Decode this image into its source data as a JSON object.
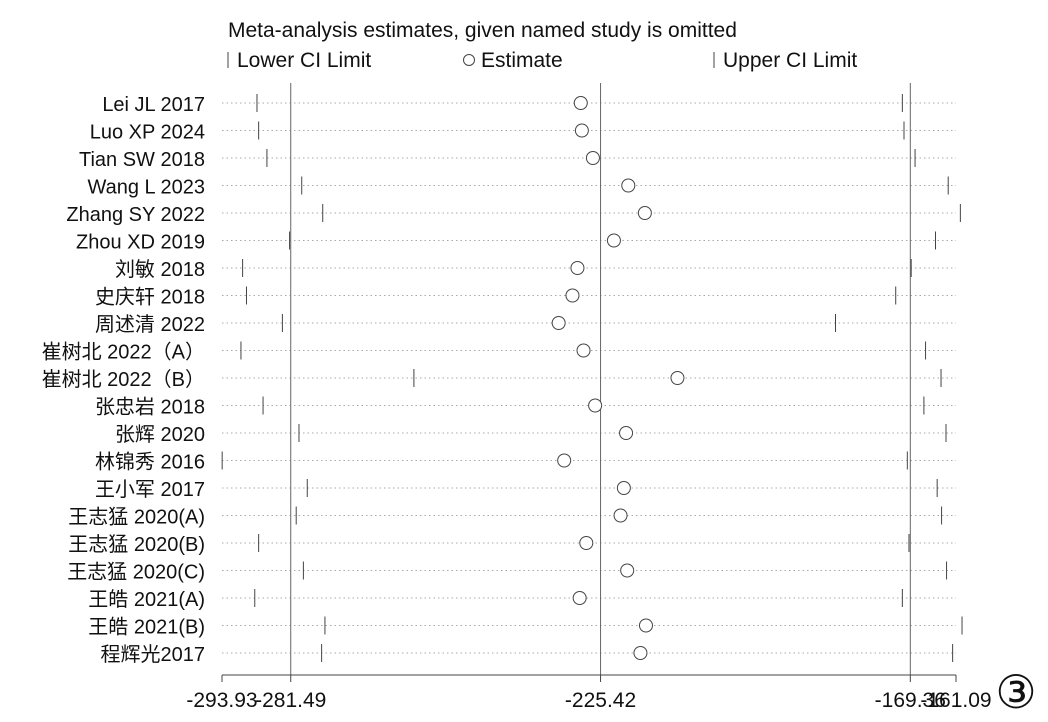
{
  "chart_data": {
    "type": "scatter",
    "title": "Meta-analysis estimates, given named study is omitted",
    "legend": {
      "placement": "top",
      "items": [
        {
          "key": "lower",
          "label": "Lower CI Limit",
          "marker": "tick"
        },
        {
          "key": "estimate",
          "label": "Estimate",
          "marker": "circle"
        },
        {
          "key": "upper",
          "label": "Upper CI Limit",
          "marker": "tick"
        }
      ]
    },
    "x_axis": {
      "xlim": [
        -293.93,
        -161.09
      ],
      "tick_labels": [
        "-293.93",
        "-281.49",
        "-225.42",
        "-169.36",
        "-161.09"
      ],
      "tick_values": [
        -293.93,
        -281.49,
        -225.42,
        -169.36,
        -161.09
      ],
      "reference_lines": [
        -281.49,
        -225.42,
        -169.36
      ]
    },
    "grid": "dotted row guides",
    "series": [
      {
        "study": "Lei JL 2017",
        "lower": -287.6,
        "estimate": -229.0,
        "upper": -170.8
      },
      {
        "study": "Luo XP 2024",
        "lower": -287.3,
        "estimate": -228.8,
        "upper": -170.5
      },
      {
        "study": "Tian SW 2018",
        "lower": -285.8,
        "estimate": -226.8,
        "upper": -168.5
      },
      {
        "study": "Wang L 2023",
        "lower": -279.5,
        "estimate": -220.4,
        "upper": -162.5
      },
      {
        "study": "Zhang SY 2022",
        "lower": -275.7,
        "estimate": -217.4,
        "upper": -160.3
      },
      {
        "study": "Zhou XD 2019",
        "lower": -281.7,
        "estimate": -223.0,
        "upper": -164.8
      },
      {
        "study": "刘敏 2018",
        "lower": -290.2,
        "estimate": -229.6,
        "upper": -169.2
      },
      {
        "study": "史庆轩 2018",
        "lower": -289.5,
        "estimate": -230.5,
        "upper": -172.0
      },
      {
        "study": "周述清 2022",
        "lower": -283.0,
        "estimate": -233.0,
        "upper": -182.9
      },
      {
        "study": "崔树北 2022（A）",
        "lower": -290.5,
        "estimate": -228.5,
        "upper": -166.6
      },
      {
        "study": "崔树北 2022（B）",
        "lower": -259.2,
        "estimate": -211.5,
        "upper": -163.8
      },
      {
        "study": "张忠岩 2018",
        "lower": -286.5,
        "estimate": -226.4,
        "upper": -166.9
      },
      {
        "study": "张辉 2020",
        "lower": -280.0,
        "estimate": -220.8,
        "upper": -162.9
      },
      {
        "study": "林锦秀 2016",
        "lower": -293.9,
        "estimate": -232.0,
        "upper": -169.9
      },
      {
        "study": "王小军 2017",
        "lower": -278.5,
        "estimate": -221.2,
        "upper": -164.5
      },
      {
        "study": "王志猛 2020(A)",
        "lower": -280.5,
        "estimate": -221.8,
        "upper": -163.7
      },
      {
        "study": "王志猛 2020(B)",
        "lower": -287.3,
        "estimate": -228.0,
        "upper": -169.6
      },
      {
        "study": "王志猛 2020(C)",
        "lower": -279.2,
        "estimate": -220.6,
        "upper": -162.8
      },
      {
        "study": "王皓 2021(A)",
        "lower": -288.0,
        "estimate": -229.2,
        "upper": -170.8
      },
      {
        "study": "王皓 2021(B)",
        "lower": -275.3,
        "estimate": -217.2,
        "upper": -160.0
      },
      {
        "study": "程辉光2017",
        "lower": -275.9,
        "estimate": -218.2,
        "upper": -161.7
      }
    ]
  },
  "panel_marker": "③"
}
